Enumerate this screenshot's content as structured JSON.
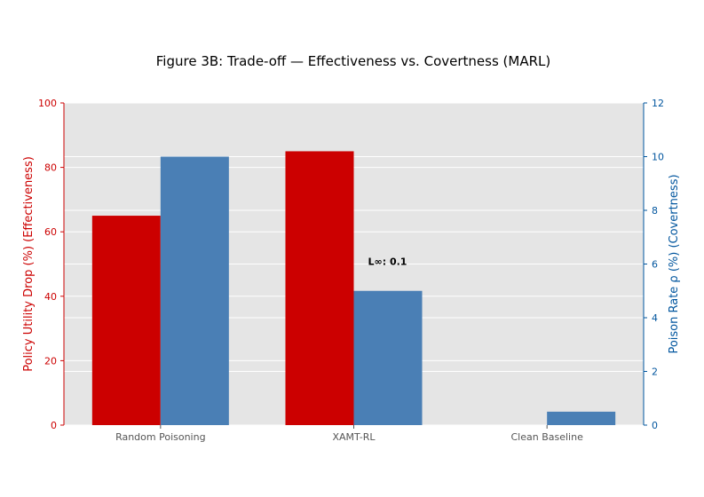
{
  "chart_data": {
    "type": "bar",
    "title": "Figure 3B: Trade-off — Effectiveness vs. Covertness (MARL)",
    "categories": [
      "Random Poisoning",
      "XAMT-RL",
      "Clean Baseline"
    ],
    "series": [
      {
        "name": "Policy Utility Drop (%) (Effectiveness)",
        "axis": "left",
        "color": "#cc0000",
        "values": [
          65,
          85,
          0
        ]
      },
      {
        "name": "Poison Rate ρ (%) (Covertness)",
        "axis": "right",
        "color": "#4a7fb5",
        "values": [
          10,
          5,
          0.5
        ]
      }
    ],
    "ylabel_left": "Policy Utility Drop (%) (Effectiveness)",
    "ylabel_right": "Poison Rate ρ (%) (Covertness)",
    "ylim_left": [
      0,
      100
    ],
    "ylim_right": [
      0,
      12
    ],
    "yticks_left": [
      "0",
      "20",
      "40",
      "60",
      "80",
      "100"
    ],
    "yticks_right": [
      "0",
      "2",
      "4",
      "6",
      "8",
      "10",
      "12"
    ],
    "grid": true,
    "annotation": {
      "label": "L∞: 0.1",
      "category": "XAMT-RL",
      "y_right": 6
    },
    "colors": {
      "background": "#e5e5e5",
      "grid": "#ffffff",
      "left_axis": "#cc0000",
      "right_axis": "#00559e",
      "tick_label": "#555555"
    }
  }
}
